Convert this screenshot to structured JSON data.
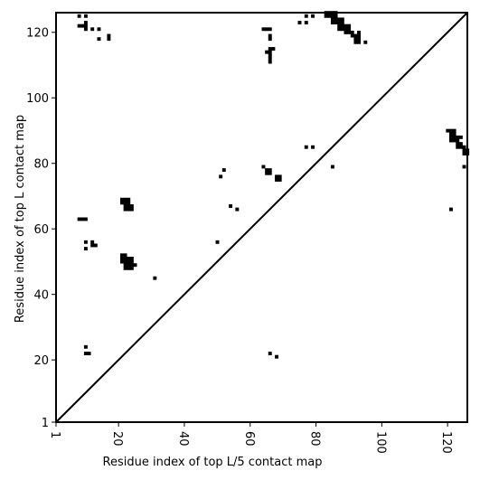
{
  "chart_data": {
    "type": "heatmap",
    "xlabel": "Residue index of top L/5 contact map",
    "ylabel": "Residue index of top L contact map",
    "xlim": [
      1,
      126
    ],
    "ylim": [
      1,
      126
    ],
    "x_ticks": [
      1,
      20,
      40,
      60,
      80,
      100,
      120
    ],
    "x_tick_labels": [
      "1",
      "20",
      "40",
      "60",
      "80",
      "100",
      "120"
    ],
    "x_tick_rotation": "rotated 90 degrees",
    "y_ticks": [
      1,
      20,
      40,
      60,
      80,
      100,
      120
    ],
    "y_tick_labels": [
      "1",
      "20",
      "40",
      "60",
      "80",
      "100",
      "120"
    ],
    "diagonal": "line from (1,1) to (126,126)",
    "grid": false,
    "legend": "none",
    "colors": {
      "contact": "#000000",
      "background": "#ffffff",
      "diagonal": "#000000"
    },
    "contacts_upper_top_L": [
      [
        8,
        125
      ],
      [
        10,
        125
      ],
      [
        8,
        122
      ],
      [
        9,
        122
      ],
      [
        10,
        122
      ],
      [
        10,
        121
      ],
      [
        10,
        123
      ],
      [
        12,
        121
      ],
      [
        14,
        121
      ],
      [
        14,
        118
      ],
      [
        17,
        118
      ],
      [
        17,
        119
      ],
      [
        64,
        121
      ],
      [
        65,
        121
      ],
      [
        66,
        121
      ],
      [
        66,
        119
      ],
      [
        66,
        118
      ],
      [
        65,
        114
      ],
      [
        66,
        115
      ],
      [
        66,
        114
      ],
      [
        66,
        113
      ],
      [
        66,
        112
      ],
      [
        66,
        111
      ],
      [
        67,
        115
      ],
      [
        75,
        123
      ],
      [
        77,
        123
      ],
      [
        77,
        125
      ],
      [
        79,
        125
      ],
      [
        83,
        126
      ],
      [
        84,
        126
      ],
      [
        85,
        126
      ],
      [
        86,
        126
      ],
      [
        83,
        125
      ],
      [
        84,
        125
      ],
      [
        85,
        125
      ],
      [
        86,
        125
      ],
      [
        85,
        124
      ],
      [
        86,
        124
      ],
      [
        87,
        124
      ],
      [
        88,
        124
      ],
      [
        85,
        123
      ],
      [
        86,
        123
      ],
      [
        87,
        123
      ],
      [
        88,
        123
      ],
      [
        87,
        122
      ],
      [
        88,
        122
      ],
      [
        89,
        122
      ],
      [
        90,
        122
      ],
      [
        87,
        121
      ],
      [
        88,
        121
      ],
      [
        89,
        121
      ],
      [
        90,
        121
      ],
      [
        89,
        120
      ],
      [
        90,
        120
      ],
      [
        91,
        120
      ],
      [
        91,
        119
      ],
      [
        92,
        119
      ],
      [
        93,
        119
      ],
      [
        93,
        120
      ],
      [
        92,
        118
      ],
      [
        93,
        118
      ],
      [
        92,
        117
      ],
      [
        93,
        117
      ],
      [
        95,
        117
      ],
      [
        120,
        90
      ],
      [
        121,
        90
      ],
      [
        122,
        90
      ],
      [
        121,
        89
      ],
      [
        122,
        89
      ],
      [
        121,
        88
      ],
      [
        122,
        88
      ],
      [
        123,
        88
      ],
      [
        124,
        88
      ],
      [
        121,
        87
      ],
      [
        122,
        87
      ],
      [
        123,
        87
      ],
      [
        123,
        86
      ],
      [
        124,
        86
      ],
      [
        123,
        85
      ],
      [
        124,
        85
      ],
      [
        125,
        85
      ],
      [
        125,
        84
      ],
      [
        126,
        84
      ],
      [
        125,
        83
      ],
      [
        126,
        83
      ]
    ],
    "contacts_lower_top_L5": [
      [
        8,
        63
      ],
      [
        9,
        63
      ],
      [
        10,
        63
      ],
      [
        10,
        56
      ],
      [
        10,
        54
      ],
      [
        12,
        56
      ],
      [
        12,
        55
      ],
      [
        13,
        55
      ],
      [
        10,
        24
      ],
      [
        10,
        22
      ],
      [
        11,
        22
      ],
      [
        21,
        69
      ],
      [
        22,
        69
      ],
      [
        23,
        69
      ],
      [
        21,
        68
      ],
      [
        22,
        68
      ],
      [
        23,
        68
      ],
      [
        22,
        67
      ],
      [
        23,
        67
      ],
      [
        24,
        67
      ],
      [
        22,
        66
      ],
      [
        23,
        66
      ],
      [
        24,
        66
      ],
      [
        21,
        52
      ],
      [
        22,
        52
      ],
      [
        21,
        51
      ],
      [
        22,
        51
      ],
      [
        23,
        51
      ],
      [
        24,
        51
      ],
      [
        21,
        50
      ],
      [
        22,
        50
      ],
      [
        23,
        50
      ],
      [
        24,
        50
      ],
      [
        22,
        49
      ],
      [
        23,
        49
      ],
      [
        24,
        49
      ],
      [
        25,
        49
      ],
      [
        22,
        48
      ],
      [
        23,
        48
      ],
      [
        24,
        48
      ],
      [
        31,
        45
      ],
      [
        50,
        56
      ],
      [
        51,
        76
      ],
      [
        52,
        78
      ],
      [
        54,
        67
      ],
      [
        56,
        66
      ],
      [
        64,
        79
      ],
      [
        65,
        78
      ],
      [
        66,
        78
      ],
      [
        65,
        77
      ],
      [
        66,
        77
      ],
      [
        68,
        76
      ],
      [
        69,
        76
      ],
      [
        68,
        75
      ],
      [
        69,
        75
      ],
      [
        66,
        22
      ],
      [
        68,
        21
      ],
      [
        77,
        85
      ],
      [
        79,
        85
      ],
      [
        85,
        79
      ],
      [
        121,
        66
      ],
      [
        125,
        79
      ]
    ]
  }
}
